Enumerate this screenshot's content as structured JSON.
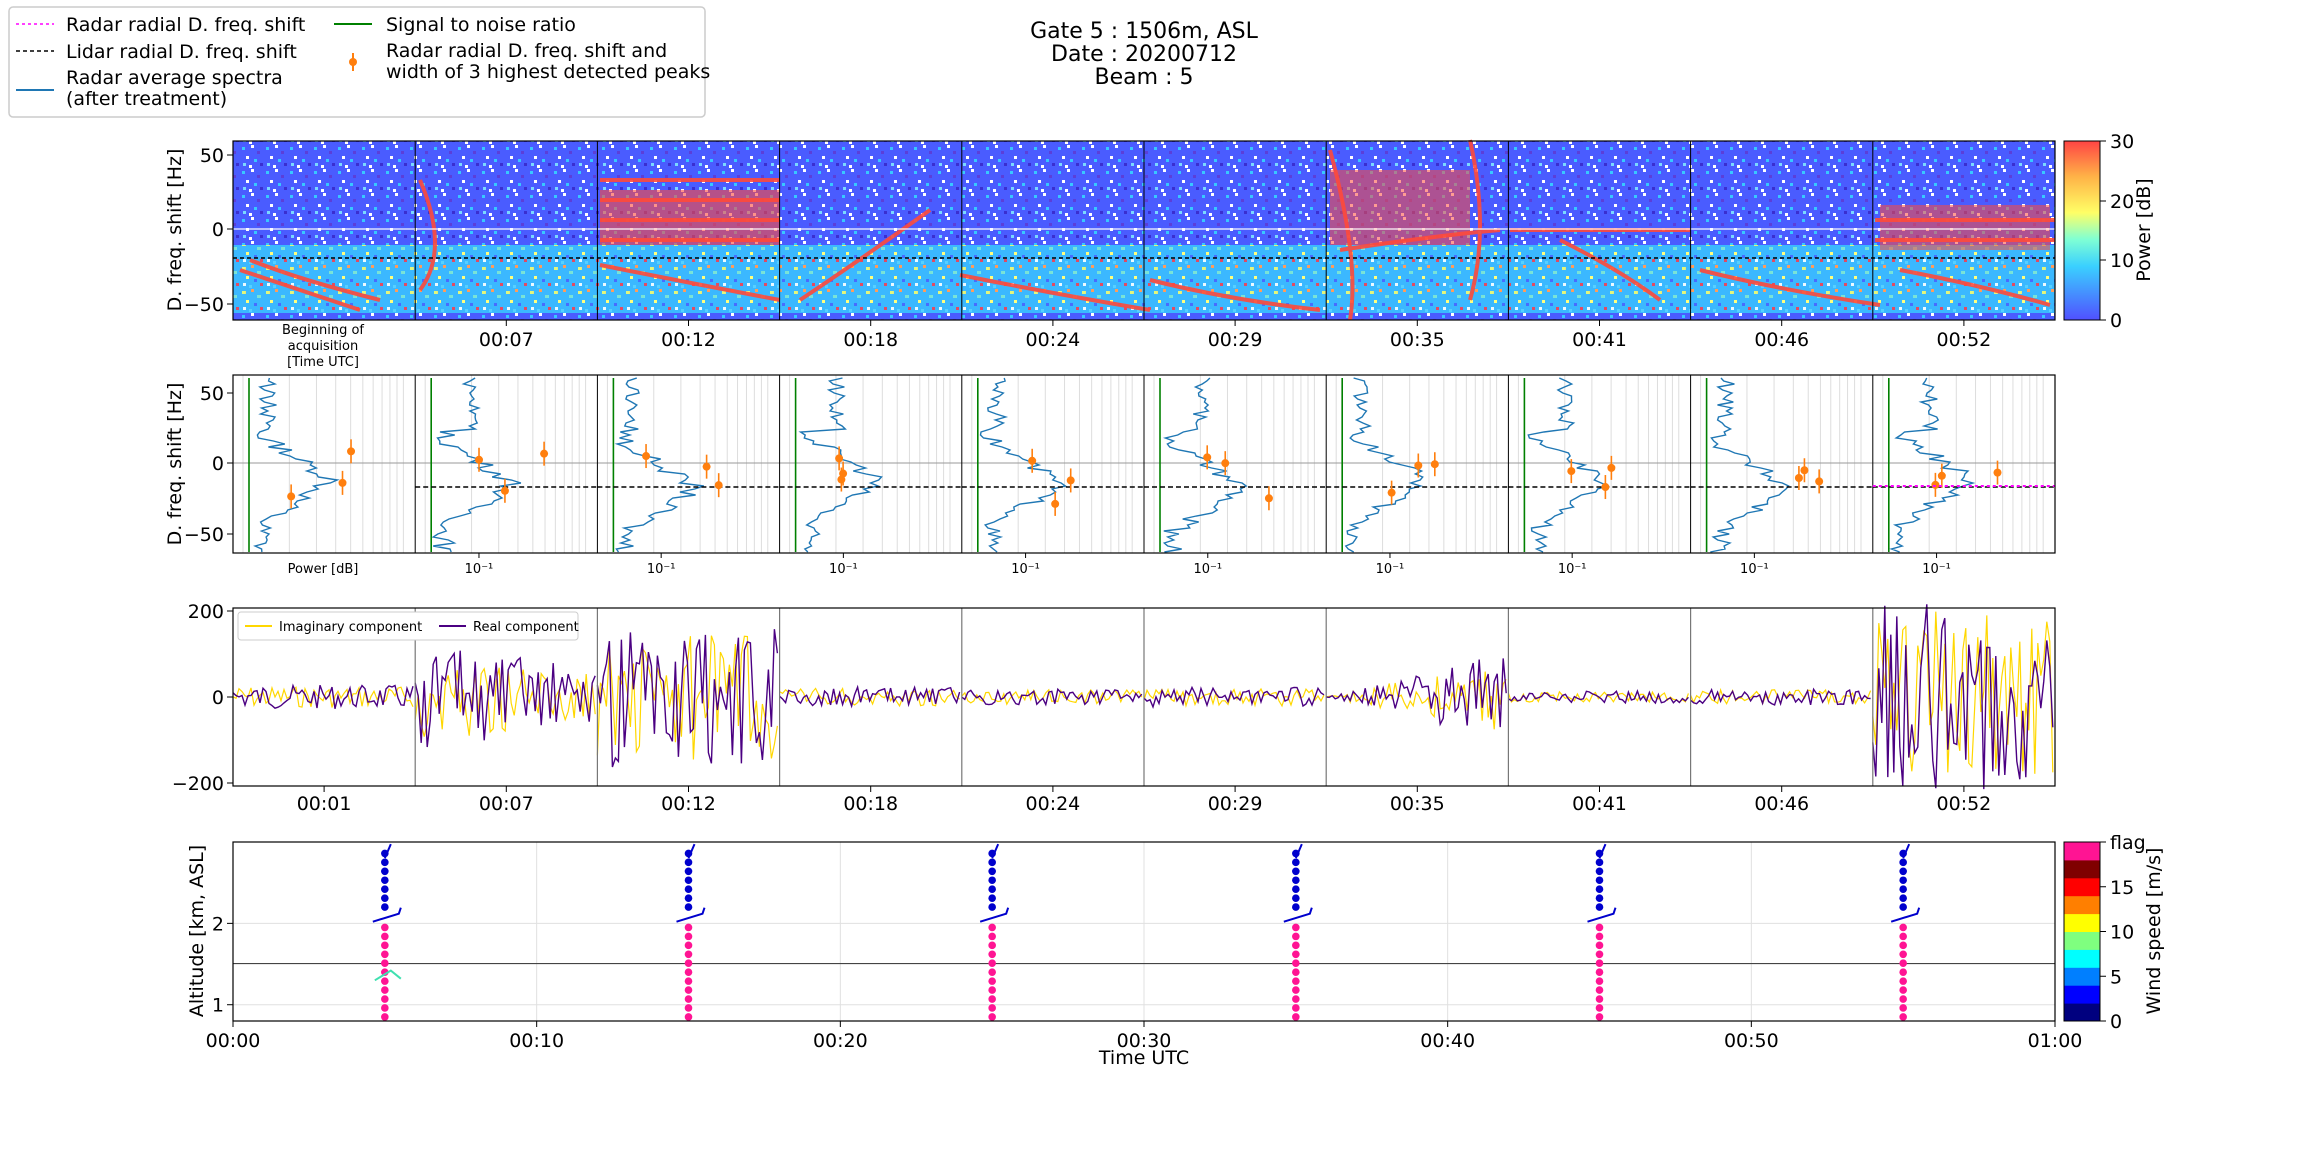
{
  "title_lines": [
    "Gate 5 : 1506m, ASL",
    "Date : 20200712",
    "Beam : 5"
  ],
  "legend": {
    "entries": [
      {
        "label": "Radar radial D. freq. shift",
        "color": "#ff00ff",
        "style": "dotted"
      },
      {
        "label": "Lidar radial D. freq. shift",
        "color": "#000000",
        "style": "dashed"
      },
      {
        "label_lines": [
          "Radar average spectra",
          "(after treatment)"
        ],
        "color": "#1f77b4",
        "style": "solid"
      },
      {
        "label": "Signal to noise ratio",
        "color": "#008000",
        "style": "solid"
      },
      {
        "label_lines": [
          "Radar radial D. freq. shift and",
          "width of 3 highest detected peaks"
        ],
        "color": "#ff7f0e",
        "style": "errorbar"
      }
    ]
  },
  "time_ticks": [
    "00:07",
    "00:12",
    "00:18",
    "00:24",
    "00:29",
    "00:35",
    "00:41",
    "00:46",
    "00:52"
  ],
  "time_ticks_signal": [
    "00:01",
    "00:07",
    "00:12",
    "00:18",
    "00:24",
    "00:29",
    "00:35",
    "00:41",
    "00:46",
    "00:52"
  ],
  "beginning_label_lines": [
    "Beginning of",
    "acquisition",
    "[Time UTC]"
  ],
  "panel1": {
    "ylabel": "D. freq. shift [Hz]",
    "yticks": [
      "50",
      "0",
      "−50"
    ],
    "colorbar": {
      "label": "Power [dB]",
      "ticks": [
        "0",
        "10",
        "20",
        "30"
      ],
      "colors": [
        "#5050ff",
        "#3ad0ff",
        "#7fffd4",
        "#ffff66",
        "#ffb347",
        "#ff4444"
      ]
    }
  },
  "panel2": {
    "ylabel": "D. freq. shift [Hz]",
    "yticks": [
      "50",
      "0",
      "−50"
    ],
    "xlabel_first": "Power [dB]",
    "xtick_label": "10⁻¹"
  },
  "panel3": {
    "yticks": [
      "200",
      "0",
      "−200"
    ],
    "legend": [
      {
        "label": "Imaginary component",
        "color": "#ffd700"
      },
      {
        "label": "Real component",
        "color": "#4b0082"
      }
    ]
  },
  "chart_data": {
    "type": "scatter",
    "title": "",
    "xlabel": "Time UTC",
    "ylabel": "Altitude [km, ASL]",
    "xticks": [
      "00:00",
      "00:10",
      "00:20",
      "00:30",
      "00:40",
      "00:50",
      "01:00"
    ],
    "yticks": [
      "1",
      "2"
    ],
    "xlim_minutes": [
      0,
      60
    ],
    "ylim_km": [
      0.8,
      3.0
    ],
    "gate_altitude_km": 1.506,
    "profile_times_min": [
      5,
      15,
      25,
      35,
      45,
      55
    ],
    "colorbar": {
      "label": "Wind speed [m/s]",
      "ticks": [
        "0",
        "5",
        "10",
        "15",
        "flag"
      ],
      "colors": [
        "#00007f",
        "#0000ff",
        "#007fff",
        "#00ffff",
        "#7fff7f",
        "#ffff00",
        "#ff7f00",
        "#ff0000",
        "#7f0000",
        "#ff1493"
      ]
    },
    "series": [
      {
        "name": "",
        "color": "#ff1493",
        "alt_range_km": [
          0.85,
          2.0
        ]
      },
      {
        "name": "",
        "color": "#0000cd",
        "alt_range_km": [
          2.2,
          2.9
        ]
      }
    ]
  }
}
